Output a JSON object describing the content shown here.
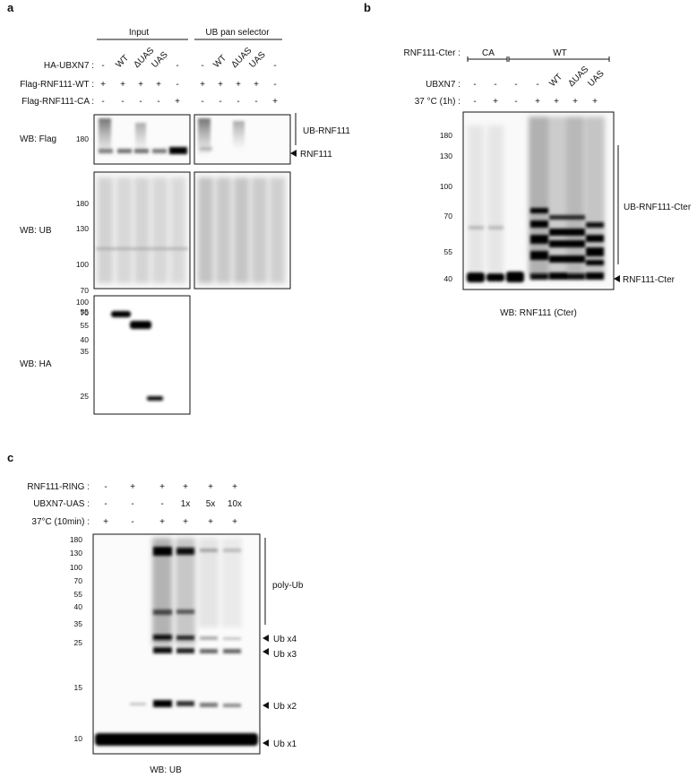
{
  "panel_a": {
    "label": "a",
    "groups": [
      "Input",
      "UB pan selector"
    ],
    "row_labels": [
      "HA-UBXN7 :",
      "Flag-RNF111-WT :",
      "Flag-RNF111-CA :"
    ],
    "ha_ubxn7": [
      "-",
      "WT",
      "ΔUAS",
      "UAS",
      "-",
      "-",
      "WT",
      "ΔUAS",
      "UAS",
      "-"
    ],
    "flag_wt": [
      "+",
      "+",
      "+",
      "+",
      "-",
      "+",
      "+",
      "+",
      "+",
      "-"
    ],
    "flag_ca": [
      "-",
      "-",
      "-",
      "-",
      "+",
      "-",
      "-",
      "-",
      "-",
      "+"
    ],
    "blots": {
      "flag": {
        "label": "WB: Flag",
        "markers": [
          "180"
        ],
        "annot_ub": "UB-RNF111",
        "annot_rnf": "RNF111"
      },
      "ub": {
        "label": "WB: UB",
        "markers": [
          "180",
          "130",
          "100",
          "70",
          "55"
        ]
      },
      "ha": {
        "label": "WB: HA",
        "markers": [
          "100",
          "70",
          "55",
          "40",
          "35",
          "25"
        ]
      }
    }
  },
  "panel_b": {
    "label": "b",
    "row_labels": [
      "RNF111-Cter :",
      "UBXN7 :",
      "37 °C (1h) :"
    ],
    "groups": [
      "CA",
      "WT"
    ],
    "ubxn7": [
      "-",
      "-",
      "-",
      "-",
      "WT",
      "ΔUAS",
      "UAS"
    ],
    "temp": [
      "-",
      "+",
      "-",
      "+",
      "+",
      "+",
      "+"
    ],
    "markers": [
      "180",
      "130",
      "100",
      "70",
      "55",
      "40"
    ],
    "annot_ub": "UB-RNF111-Cter",
    "annot_rnf": "RNF111-Cter",
    "wb": "WB: RNF111 (Cter)"
  },
  "panel_c": {
    "label": "c",
    "row_labels": [
      "RNF111-RING :",
      "UBXN7-UAS :",
      "37°C (10min) :"
    ],
    "ring": [
      "-",
      "+",
      "+",
      "+",
      "+",
      "+"
    ],
    "uas": [
      "-",
      "-",
      "-",
      "1x",
      "5x",
      "10x"
    ],
    "temp": [
      "+",
      "-",
      "+",
      "+",
      "+",
      "+"
    ],
    "markers": [
      "180",
      "130",
      "100",
      "70",
      "55",
      "40",
      "35",
      "25",
      "15",
      "10"
    ],
    "annot": [
      "poly-Ub",
      "Ub x4",
      "Ub x3",
      "Ub x2",
      "Ub x1"
    ],
    "wb": "WB: UB"
  }
}
